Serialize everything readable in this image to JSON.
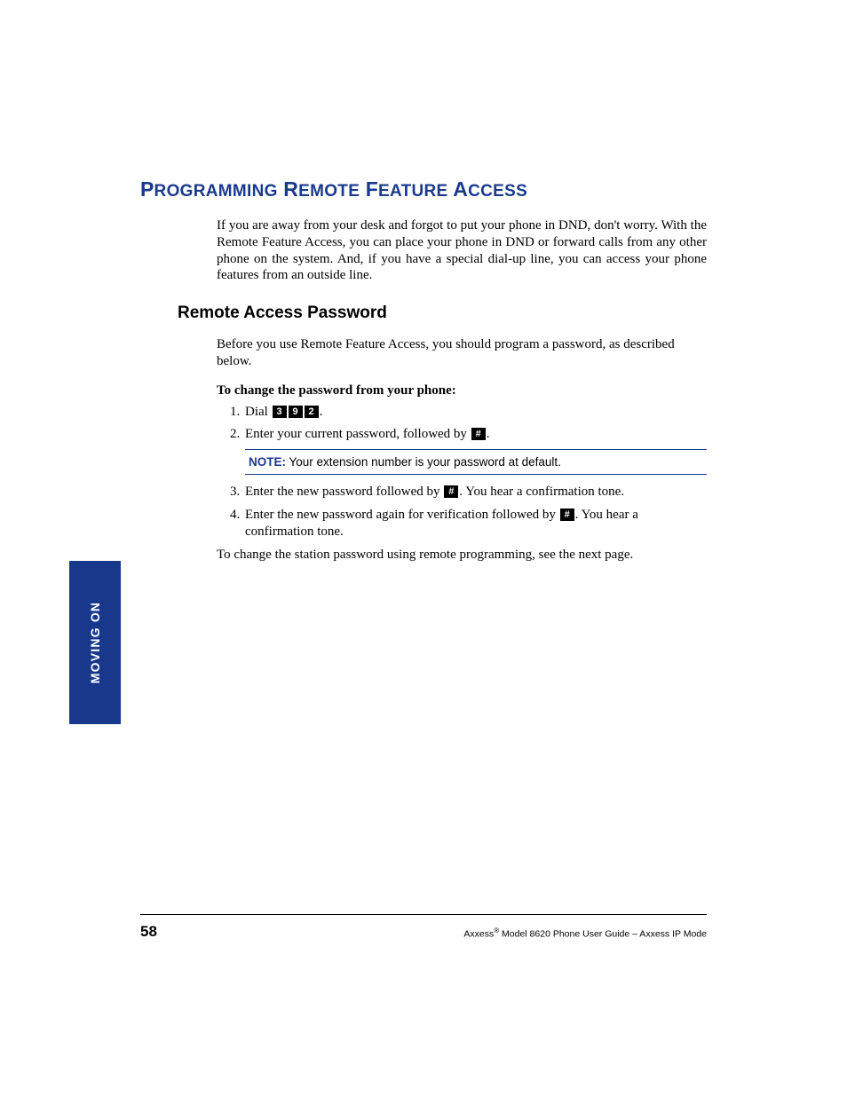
{
  "colors": {
    "heading_blue": "#1b3a8c",
    "tab_blue": "#17388b",
    "key_bg": "#000000",
    "key_fg": "#ffffff",
    "text": "#000000",
    "background": "#ffffff"
  },
  "heading": {
    "word1_cap": "P",
    "word1_rest": "ROGRAMMING",
    "word2_cap": "R",
    "word2_rest": "EMOTE",
    "word3_cap": "F",
    "word3_rest": "EATURE",
    "word4_cap": "A",
    "word4_rest": "CCESS"
  },
  "intro": "If you are away from your desk and forgot to put your phone in DND, don't worry. With the Remote Feature Access, you can place your phone in DND or forward calls from any other phone on the system. And, if you have a special dial-up line, you can access your phone features from an outside line.",
  "subheading": "Remote Access Password",
  "sub_intro": "Before you use Remote Feature Access, you should program a password, as described below.",
  "to_change_line": "To change the password from your phone:",
  "steps": {
    "s1_prefix": "Dial ",
    "s1_key1": "3",
    "s1_key2": "9",
    "s1_key3": "2",
    "s1_suffix": ".",
    "s2_prefix": "Enter your current password, followed by ",
    "s2_key": "#",
    "s2_suffix": ".",
    "note_label": "NOTE:",
    "note_text": " Your extension number is your password at default.",
    "s3_prefix": "Enter the new password followed by ",
    "s3_key": "#",
    "s3_suffix": ". You hear a confirmation tone.",
    "s4_prefix": "Enter the new password again for verification followed by ",
    "s4_key": "#",
    "s4_suffix": ". You hear a confirmation tone."
  },
  "closing": "To change the station password using remote programming, see the next page.",
  "side_tab": "MOVING ON",
  "footer": {
    "page_number": "58",
    "brand": "Axxess",
    "reg": "®",
    "rest": " Model 8620 Phone User Guide – Axxess IP Mode"
  }
}
